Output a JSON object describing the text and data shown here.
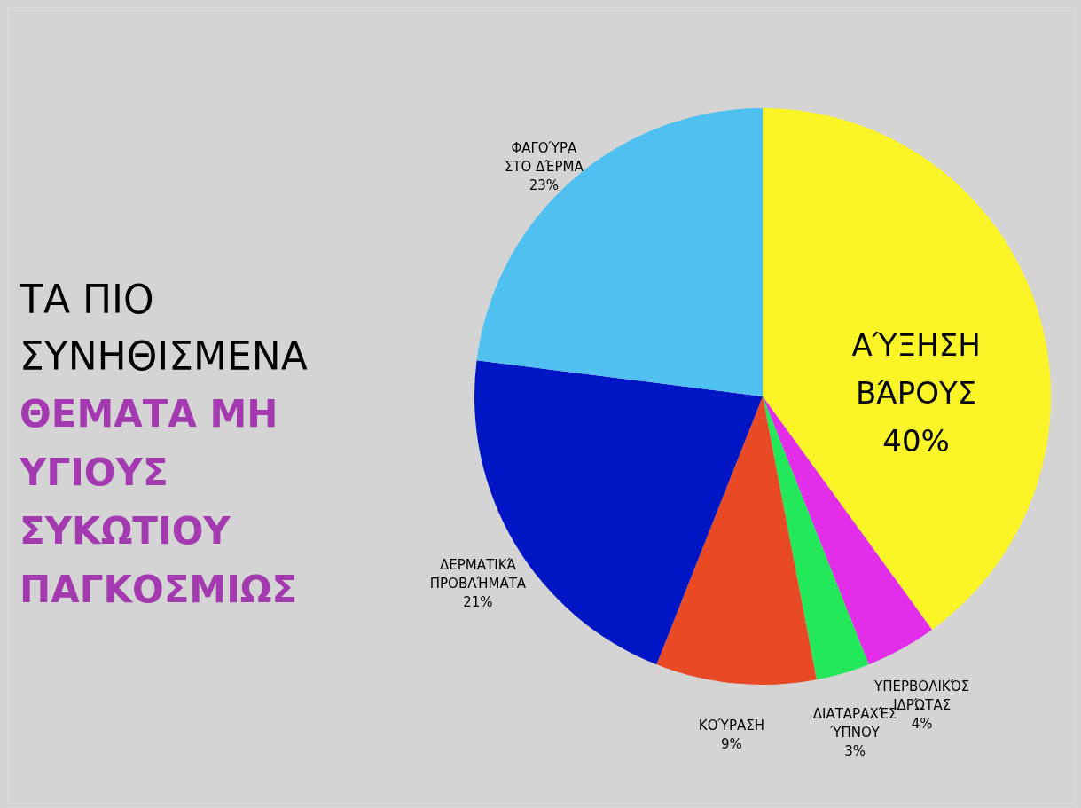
{
  "chart_data": {
    "type": "pie",
    "title": "ΤΑ ΠΙΟ\nΣΥΝΗΘΙΣΜΕΝΑ",
    "subtitle": "ΘΕΜΑΤΑ ΜΗ\nΥΓΙΟΥΣ\nΣΥΚΩΤΙΟΥ\nΠΑΓΚΟΣΜΙΩΣ",
    "categories": [
      "ΑΎΞΗΣΗ\nΒΆΡΟΥΣ",
      "ΥΠΕΡΒΟΛΙΚΌΣ\nΙΔΡΏΤΑΣ",
      "ΔΙΑΤΑΡΑΧΈΣ\nΎΠΝΟΥ",
      "ΚΟΎΡΑΣΗ",
      "ΔΕΡΜΑΤΙΚΆ\nΠΡΟΒΛΉΜΑΤΑ",
      "ΦΑΓΟΎΡΑ\nΣΤΟ ΔΈΡΜΑ"
    ],
    "values": [
      40,
      4,
      3,
      9,
      21,
      23
    ],
    "value_labels": [
      "40%",
      "4%",
      "3%",
      "9%",
      "21%",
      "23%"
    ],
    "colors": [
      "#fbf527",
      "#e22ee8",
      "#22e85a",
      "#e84a25",
      "#0015c4",
      "#50c0f0"
    ]
  }
}
